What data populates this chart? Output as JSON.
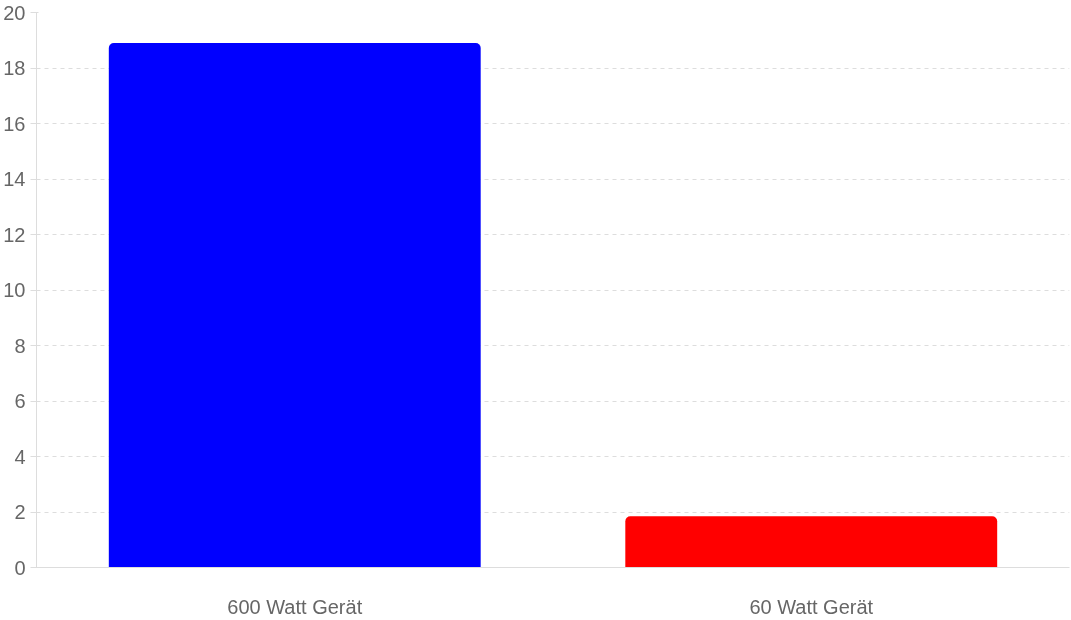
{
  "chart_data": {
    "type": "bar",
    "categories": [
      "600 Watt Gerät",
      "60 Watt Gerät"
    ],
    "colors": [
      "#0000ff",
      "#ff0000"
    ],
    "values": [
      18.9,
      1.85
    ],
    "ylim": [
      0,
      20
    ],
    "yticks": [
      0,
      2,
      4,
      6,
      8,
      10,
      12,
      14,
      16,
      18,
      20
    ],
    "grid": "y"
  }
}
